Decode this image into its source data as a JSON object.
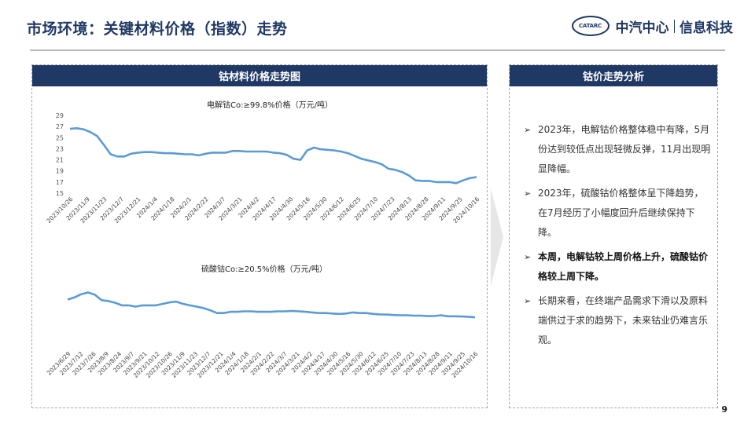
{
  "header": {
    "title": "市场环境：关键材料价格（指数）走势",
    "logo_mark": "CATARC",
    "logo_name": "中汽中心",
    "logo_unit": "信息科技"
  },
  "left_panel": {
    "heading": "钴材料价格走势图"
  },
  "right_panel": {
    "heading": "钴价走势分析",
    "bullets": [
      {
        "text": "2023年，电解钴价格整体稳中有降，5月份达到较低点出现轻微反弹，11月出现明显降幅。",
        "bold": false
      },
      {
        "text": "2023年，硫酸钴价格整体呈下降趋势，在7月经历了小幅度回升后继续保持下降。",
        "bold": false
      },
      {
        "text": "本周，电解钴较上周价格上升，硫酸钴价格较上周下降。",
        "bold": true
      },
      {
        "text": "长期来看，在终端产品需求下滑以及原料端供过于求的趋势下，未来钴业仍难言乐观。",
        "bold": false
      }
    ]
  },
  "page_number": "9",
  "colors": {
    "navy": "#1f3864",
    "line": "#5b9bd5"
  },
  "chart_data": [
    {
      "type": "line",
      "title": "电解钴Co:≥99.8%价格（万元/吨）",
      "ylim": [
        15,
        29
      ],
      "yticks": [
        15,
        17,
        19,
        21,
        23,
        25,
        27,
        29
      ],
      "grid": false,
      "x_tick_labels": [
        "2023/10/26",
        "2023/11/9",
        "2023/11/23",
        "2023/12/7",
        "2023/12/21",
        "2024/1/4",
        "2024/1/18",
        "2024/2/1",
        "2024/2/22",
        "2024/3/7",
        "2024/3/21",
        "2024/4/2",
        "2024/4/17",
        "2024/4/30",
        "2024/5/16",
        "2024/5/30",
        "2024/6/12",
        "2024/6/25",
        "2024/7/10",
        "2024/7/23",
        "2024/8/13",
        "2024/8/28",
        "2024/9/11",
        "2024/9/25",
        "2024/10/16"
      ],
      "values": [
        26.6,
        26.7,
        26.5,
        26.0,
        25.3,
        23.7,
        22.0,
        21.6,
        21.6,
        22.1,
        22.3,
        22.4,
        22.4,
        22.3,
        22.2,
        22.2,
        22.1,
        22.0,
        22.0,
        21.8,
        22.1,
        22.3,
        22.3,
        22.3,
        22.6,
        22.6,
        22.5,
        22.5,
        22.5,
        22.5,
        22.3,
        22.2,
        21.9,
        21.2,
        21.0,
        22.7,
        23.2,
        22.9,
        22.8,
        22.7,
        22.5,
        22.2,
        21.7,
        21.2,
        20.9,
        20.6,
        20.2,
        19.4,
        19.2,
        18.8,
        18.2,
        17.3,
        17.2,
        17.2,
        17.0,
        17.0,
        17.0,
        16.8,
        17.3,
        17.7,
        17.9
      ]
    },
    {
      "type": "line",
      "title": "硫酸钴Co:≥20.5%价格（万元/吨）",
      "ylim": [
        2.5,
        5.5
      ],
      "grid": false,
      "x_tick_labels": [
        "2023/6/29",
        "2023/7/12",
        "2023/7/26",
        "2023/8/9",
        "2023/8/24",
        "2023/9/7",
        "2023/9/21",
        "2023/10/12",
        "2023/10/26",
        "2023/11/9",
        "2023/11/23",
        "2023/12/7",
        "2023/12/21",
        "2024/1/4",
        "2024/1/18",
        "2024/2/1",
        "2024/2/22",
        "2024/3/7",
        "2024/3/21",
        "2024/4/2",
        "2024/4/17",
        "2024/4/30",
        "2024/5/16",
        "2024/5/30",
        "2024/6/12",
        "2024/6/25",
        "2024/7/10",
        "2024/7/23",
        "2024/8/13",
        "2024/8/28",
        "2024/9/11",
        "2024/9/25",
        "2024/10/16"
      ],
      "values": [
        4.75,
        4.85,
        5.0,
        5.08,
        4.98,
        4.72,
        4.68,
        4.6,
        4.48,
        4.48,
        4.42,
        4.48,
        4.48,
        4.48,
        4.55,
        4.62,
        4.65,
        4.55,
        4.48,
        4.42,
        4.35,
        4.25,
        4.12,
        4.12,
        4.18,
        4.18,
        4.2,
        4.2,
        4.18,
        4.18,
        4.18,
        4.2,
        4.2,
        4.22,
        4.2,
        4.18,
        4.15,
        4.12,
        4.12,
        4.1,
        4.08,
        4.1,
        4.15,
        4.12,
        4.12,
        4.08,
        4.06,
        4.05,
        4.03,
        4.02,
        4.02,
        4.0,
        4.0,
        3.98,
        3.98,
        4.02,
        3.97,
        3.97,
        3.96,
        3.95,
        3.92
      ]
    }
  ]
}
